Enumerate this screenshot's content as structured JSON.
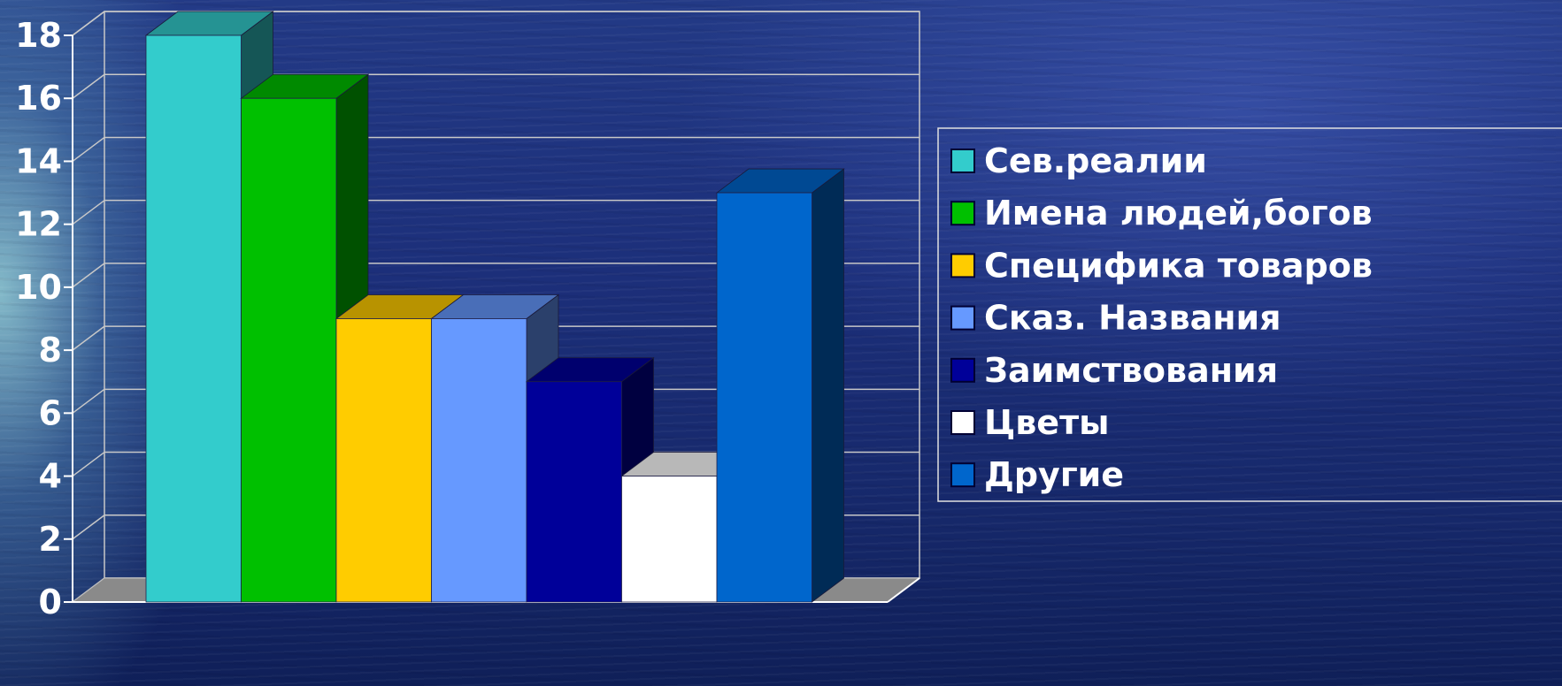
{
  "chart_data": {
    "type": "bar",
    "title": "",
    "xlabel": "",
    "ylabel": "",
    "ylim": [
      0,
      18
    ],
    "y_ticks": [
      "0",
      "2",
      "4",
      "6",
      "8",
      "10",
      "12",
      "14",
      "16",
      "18"
    ],
    "grid": true,
    "legend_position": "right",
    "style": "3d-clustered",
    "series": [
      {
        "name": "Сев.реалии",
        "value": 18,
        "color": "#33cccc"
      },
      {
        "name": "Имена людей,богов",
        "value": 16,
        "color": "#00c000"
      },
      {
        "name": "Специфика товаров",
        "value": 9,
        "color": "#ffcc00"
      },
      {
        "name": "Сказ. Названия",
        "value": 9,
        "color": "#6699ff"
      },
      {
        "name": "Заимствования",
        "value": 7,
        "color": "#000099"
      },
      {
        "name": "Цветы",
        "value": 4,
        "color": "#ffffff"
      },
      {
        "name": "Другие",
        "value": 13,
        "color": "#0066cc"
      }
    ]
  }
}
